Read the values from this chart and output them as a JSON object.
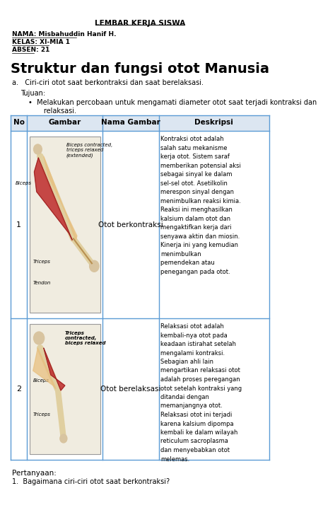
{
  "bg_color": "#ffffff",
  "header_center": "LEMBAR KERJA SISWA",
  "name_line": "NAMA: Misbahuddin Hanif H.",
  "class_line": "KELAS: XI-MIA 1",
  "absen_line": "ABSEN: 21",
  "main_title": "Struktur dan fungsi otot Manusia",
  "subtitle_a": "a.   Ciri-ciri otot saat berkontraksi dan saat berelaksasi.",
  "tujuan_label": "Tujuan:",
  "bullet_text": "Melakukan percobaan untuk mengamati diameter otot saat terjadi kontraksi dan\n       relaksasi.",
  "table_headers": [
    "No",
    "Gambar",
    "Nama Gambar",
    "Deskripsi"
  ],
  "row1_no": "1",
  "row1_nama": "Otot berkontraksi",
  "row1_desc": "Kontraksi otot adalah\nsalah satu mekanisme\nkerja otot. Sistem saraf\nmemberikan potensial aksi\nsebagai sinyal ke dalam\nsel-sel otot. Asetilkolin\nmerespon sinyal dengan\nmenimbulkan reaksi kimia.\nReaksi ini menghasilkan\nkalsium dalam otot dan\nmengaktifkan kerja dari\nsenyawa aktin dan miosin.\nKinerja ini yang kemudian\nmenimbulkan\npemendekan atau\npenegangan pada otot.",
  "row2_no": "2",
  "row2_nama": "Otot berelaksasi",
  "row2_desc": "Relaksasi otot adalah\nkembali-nya otot pada\nkeadaan istirahat setelah\nmengalami kontraksi.\nSebagian ahli lain\nmengartikan relaksasi otot\nadalah proses peregangan\notot setelah kontraksi yang\nditandai dengan\nmemanjangnya otot.\nRelaksasi otot ini terjadi\nkarena kalsium dipompa\nkembali ke dalam wilayah\nreticulum sacroplasma\ndan menyebabkan otot\nmelemas.",
  "pertanyaan_label": "Pertanyaan:",
  "pertanyaan_1": "1.  Bagaimana ciri-ciri otot saat berkontraksi?",
  "table_border_color": "#5b9bd5",
  "table_header_bg": "#dce6f1",
  "font_color": "#000000",
  "img1_label1": "Biceps contracted,",
  "img1_label2": "triceps relaxed",
  "img1_label3": "(extended)",
  "img1_biceps": "Biceps",
  "img1_triceps": "Triceps",
  "img1_tendon": "Tendon",
  "img2_label1": "Triceps",
  "img2_label2": "contracted,",
  "img2_label3": "biceps relaxed",
  "img2_biceps": "Biceps",
  "img2_triceps": "Triceps"
}
